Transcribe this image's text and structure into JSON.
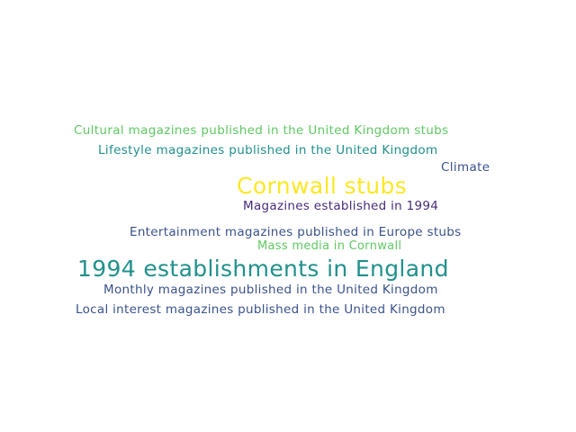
{
  "word_cloud": {
    "words": [
      {
        "text": "Cultural magazines published in the United Kingdom stubs",
        "color": "#5ec962"
      },
      {
        "text": "Lifestyle magazines published in the United Kingdom",
        "color": "#21918c"
      },
      {
        "text": "Climate",
        "color": "#3b528b"
      },
      {
        "text": "Cornwall stubs",
        "color": "#fde725"
      },
      {
        "text": "Magazines established in 1994",
        "color": "#472d7b"
      },
      {
        "text": "Entertainment magazines published in Europe stubs",
        "color": "#3b528b"
      },
      {
        "text": "Mass media in Cornwall",
        "color": "#5ec962"
      },
      {
        "text": "1994 establishments in England",
        "color": "#21918c"
      },
      {
        "text": "Monthly magazines published in the United Kingdom",
        "color": "#3b528b"
      },
      {
        "text": "Local interest magazines published in the United Kingdom",
        "color": "#3b528b"
      }
    ]
  }
}
